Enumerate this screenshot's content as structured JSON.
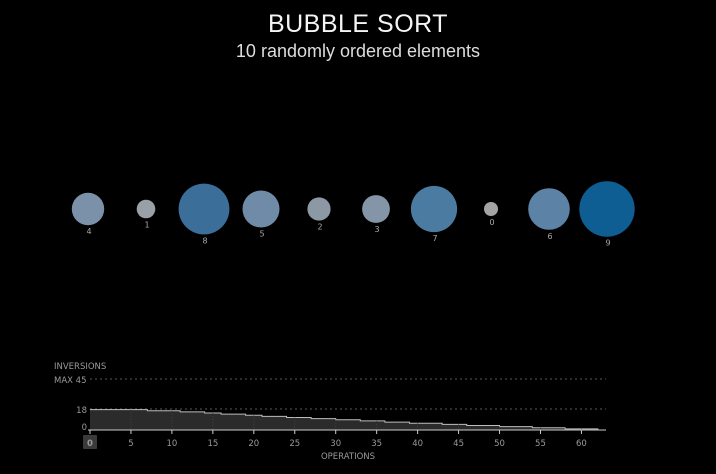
{
  "title": "BUBBLE SORT",
  "subtitle": "10 randomly ordered elements",
  "elements": [
    {
      "value": 4,
      "label": "4",
      "color": "#7b91aa"
    },
    {
      "value": 1,
      "label": "1",
      "color": "#9aa0a7"
    },
    {
      "value": 8,
      "label": "8",
      "color": "#3b6f99"
    },
    {
      "value": 5,
      "label": "5",
      "color": "#6f8ba8"
    },
    {
      "value": 2,
      "label": "2",
      "color": "#8d98a5"
    },
    {
      "value": 3,
      "label": "3",
      "color": "#8595a8"
    },
    {
      "value": 7,
      "label": "7",
      "color": "#4c7ba1"
    },
    {
      "value": 0,
      "label": "0",
      "color": "#a4a4a4"
    },
    {
      "value": 6,
      "label": "6",
      "color": "#5c83a6"
    },
    {
      "value": 9,
      "label": "9",
      "color": "#0e5e94"
    }
  ],
  "chart": {
    "y_label": "INVERSIONS",
    "max_label": "MAX 45",
    "max_value": 45,
    "current_value_label": "18",
    "zero_label": "0",
    "x_label": "OPERATIONS",
    "x_ticks": [
      "0",
      "5",
      "10",
      "15",
      "20",
      "25",
      "30",
      "35",
      "40",
      "45",
      "50",
      "55",
      "60"
    ],
    "current_operation": 0,
    "x_max": 63,
    "inversions_by_operation": [
      18,
      18,
      18,
      18,
      18,
      18,
      18,
      17,
      17,
      17,
      17,
      16,
      16,
      16,
      15,
      15,
      14,
      14,
      14,
      13,
      13,
      12,
      12,
      12,
      11,
      11,
      11,
      10,
      10,
      10,
      9,
      9,
      9,
      8,
      8,
      8,
      7,
      7,
      7,
      6,
      6,
      6,
      6,
      5,
      5,
      5,
      4,
      4,
      4,
      4,
      3,
      3,
      3,
      3,
      2,
      2,
      2,
      2,
      1,
      1,
      1,
      1,
      0,
      0
    ]
  }
}
